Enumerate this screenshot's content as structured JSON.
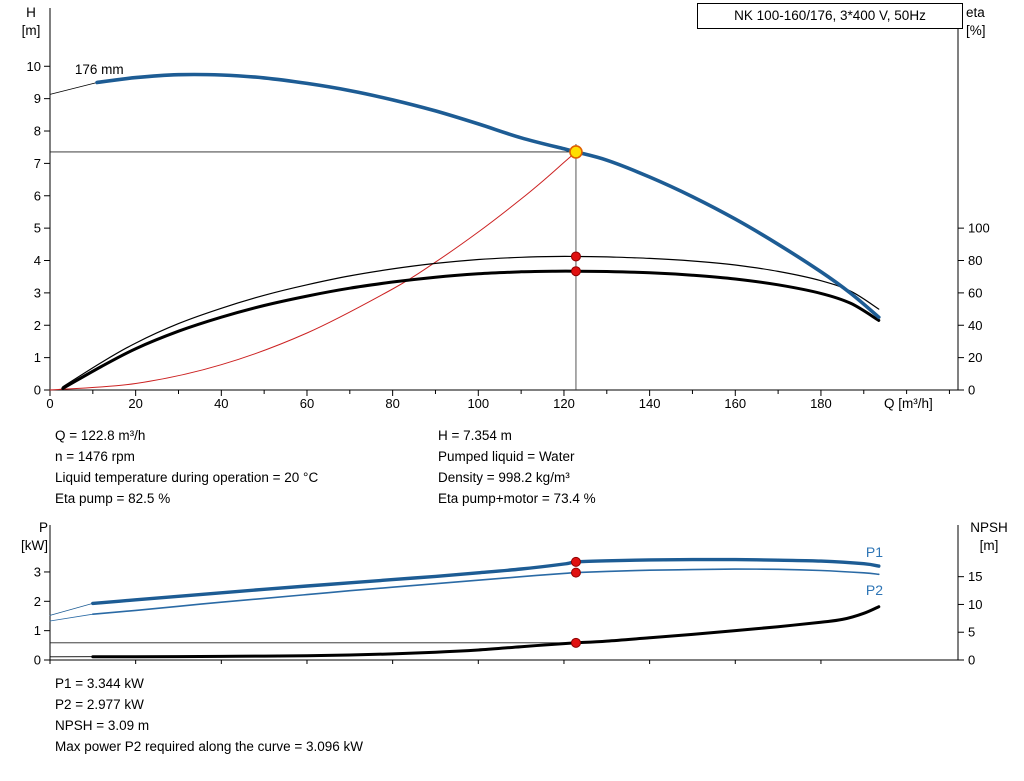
{
  "title_box": "NK 100-160/176, 3*400 V, 50Hz",
  "colors": {
    "curve_blue": "#1d5c94",
    "curve_blue_thin": "#2a6aa5",
    "label_blue": "#2e75b6",
    "system_red": "#cc2222",
    "dot_red": "#e01111",
    "dot_red_stroke": "#8e0000",
    "duty_yellow": "#ffdf00",
    "duty_stroke": "#e06000",
    "axis_black": "#000000"
  },
  "annotations": {
    "left": [
      "Q = 122.8 m³/h",
      "n = 1476 rpm",
      "Liquid temperature during operation = 20 °C",
      "Eta pump = 82.5 %"
    ],
    "right": [
      "H = 7.354 m",
      "Pumped liquid = Water",
      "Density = 998.2 kg/m³",
      "Eta pump+motor = 73.4 %"
    ],
    "bottom": [
      "P1 = 3.344 kW",
      "P2 = 2.977 kW",
      "NPSH = 3.09 m",
      "Max power P2 required along the curve = 3.096 kW"
    ]
  },
  "chart_data": [
    {
      "id": "top",
      "type": "line",
      "title": "NK 100-160/176, 3*400 V, 50Hz",
      "x": {
        "label": "Q [m³/h]",
        "min": 0,
        "max": 212,
        "major_ticks": [
          0,
          20,
          40,
          60,
          80,
          100,
          120,
          140,
          160,
          180
        ],
        "minor_step": 10,
        "show_tick_labels": true
      },
      "y_left": {
        "title_lines": [
          "H",
          "[m]"
        ],
        "min": 0,
        "max": 11.8,
        "ticks": [
          0,
          1,
          2,
          3,
          4,
          5,
          6,
          7,
          8,
          9,
          10
        ]
      },
      "y_right": {
        "title_lines": [
          "eta",
          "[%]"
        ],
        "min": 0,
        "max": 236,
        "ticks": [
          0,
          20,
          40,
          60,
          80,
          100
        ]
      },
      "duty_point": {
        "q": 122.8,
        "h": 7.354,
        "eta_pump": 82.5,
        "eta_pump_motor": 73.4
      },
      "series": [
        {
          "name": "system-curve",
          "axis": "left",
          "color": "#cc2222",
          "width": 1,
          "smooth": true,
          "points": [
            [
              0,
              0
            ],
            [
              20,
              0.2
            ],
            [
              40,
              0.78
            ],
            [
              60,
              1.76
            ],
            [
              80,
              3.12
            ],
            [
              90,
              3.95
            ],
            [
              100,
              4.88
            ],
            [
              110,
              5.9
            ],
            [
              116,
              6.56
            ],
            [
              120,
              7.03
            ],
            [
              122.8,
              7.354
            ]
          ]
        },
        {
          "name": "eta-pump-curve",
          "axis": "right",
          "color": "#000000",
          "width": 1.2,
          "smooth": true,
          "points": [
            [
              3,
              2
            ],
            [
              12,
              17
            ],
            [
              20,
              29
            ],
            [
              30,
              41
            ],
            [
              40,
              50.5
            ],
            [
              50,
              58.5
            ],
            [
              60,
              65
            ],
            [
              70,
              70.5
            ],
            [
              80,
              74.8
            ],
            [
              90,
              78.2
            ],
            [
              100,
              80.6
            ],
            [
              110,
              82
            ],
            [
              118,
              82.5
            ],
            [
              122.8,
              82.5
            ],
            [
              130,
              82.2
            ],
            [
              140,
              81.3
            ],
            [
              150,
              79.7
            ],
            [
              160,
              77.2
            ],
            [
              170,
              73.3
            ],
            [
              180,
              67.5
            ],
            [
              187,
              61
            ],
            [
              193.5,
              50
            ]
          ]
        },
        {
          "name": "eta-pump-motor-curve",
          "axis": "right",
          "color": "#000000",
          "width": 3,
          "smooth": true,
          "points": [
            [
              3,
              1
            ],
            [
              12,
              14.5
            ],
            [
              20,
              25.5
            ],
            [
              30,
              36.3
            ],
            [
              40,
              45
            ],
            [
              50,
              52.2
            ],
            [
              60,
              58
            ],
            [
              70,
              62.9
            ],
            [
              80,
              66.7
            ],
            [
              90,
              69.7
            ],
            [
              100,
              71.8
            ],
            [
              110,
              73
            ],
            [
              118,
              73.4
            ],
            [
              122.8,
              73.4
            ],
            [
              130,
              73.2
            ],
            [
              140,
              72.4
            ],
            [
              150,
              70.9
            ],
            [
              160,
              68.6
            ],
            [
              170,
              65
            ],
            [
              180,
              59.7
            ],
            [
              187,
              53.5
            ],
            [
              193.5,
              43
            ]
          ]
        },
        {
          "name": "pump-curve-leader",
          "axis": "left",
          "color": "#000000",
          "width": 0.8,
          "smooth": false,
          "points": [
            [
              0,
              9.13
            ],
            [
              11,
              9.5
            ]
          ]
        },
        {
          "name": "pump-curve-176mm",
          "axis": "left",
          "color": "#1d5c94",
          "width": 3.6,
          "smooth": true,
          "points": [
            [
              11,
              9.5
            ],
            [
              20,
              9.65
            ],
            [
              30,
              9.74
            ],
            [
              40,
              9.73
            ],
            [
              50,
              9.64
            ],
            [
              60,
              9.47
            ],
            [
              70,
              9.25
            ],
            [
              80,
              8.96
            ],
            [
              90,
              8.62
            ],
            [
              100,
              8.22
            ],
            [
              110,
              7.79
            ],
            [
              120,
              7.45
            ],
            [
              122.8,
              7.354
            ],
            [
              130,
              7.1
            ],
            [
              140,
              6.58
            ],
            [
              150,
              5.97
            ],
            [
              160,
              5.28
            ],
            [
              170,
              4.5
            ],
            [
              180,
              3.65
            ],
            [
              187,
              2.98
            ],
            [
              193.5,
              2.25
            ]
          ]
        }
      ],
      "lines": [
        {
          "name": "duty-horizontal-line",
          "axis": "left",
          "x1": 0,
          "y1": 7.354,
          "x2": 122.8,
          "y2": 7.354,
          "width": 0.9,
          "color": "#222222"
        },
        {
          "name": "duty-vertical-line",
          "axis": "left",
          "x1": 122.8,
          "y1": 0,
          "x2": 122.8,
          "y2": 7.6,
          "width": 0.9,
          "color": "#444444"
        }
      ],
      "markers": [
        {
          "name": "eta-pump-point",
          "axis": "right",
          "x": 122.8,
          "y": 82.5,
          "r": 4.5,
          "fill": "#e01111",
          "stroke": "#8e0000",
          "sw": 1
        },
        {
          "name": "eta-pump-motor-point",
          "axis": "right",
          "x": 122.8,
          "y": 73.4,
          "r": 4.5,
          "fill": "#e01111",
          "stroke": "#8e0000",
          "sw": 1
        },
        {
          "name": "duty-point",
          "axis": "left",
          "x": 122.8,
          "y": 7.354,
          "r": 6,
          "fill": "#ffdf00",
          "stroke": "#e06000",
          "sw": 1.6
        }
      ],
      "labels": [
        {
          "name": "impeller-size-label",
          "text": "176 mm",
          "axis": "left",
          "x": 5.8,
          "y": 9.76,
          "color": "#000000",
          "size": 13.5
        }
      ]
    },
    {
      "id": "bottom",
      "type": "line",
      "x": {
        "label": "",
        "min": 0,
        "max": 212,
        "major_ticks": [
          0,
          20,
          40,
          60,
          80,
          100,
          120,
          140,
          160,
          180
        ],
        "minor_step": 0,
        "show_tick_labels": false
      },
      "y_left": {
        "title_lines": [
          "P",
          "[kW]"
        ],
        "min": 0,
        "max": 4.6,
        "ticks": [
          0,
          1,
          2,
          3
        ]
      },
      "y_right": {
        "title_lines": [
          "NPSH",
          "[m]"
        ],
        "min": 0,
        "max": 24.3,
        "ticks": [
          0,
          5,
          10,
          15
        ]
      },
      "duty_point": {
        "q": 122.8,
        "p1_kw": 3.344,
        "p2_kw": 2.977,
        "npsh_m": 3.09
      },
      "series": [
        {
          "name": "p1-leader",
          "axis": "left",
          "color": "#1d5c94",
          "width": 0.8,
          "smooth": false,
          "points": [
            [
              0,
              1.52
            ],
            [
              10,
              1.93
            ]
          ]
        },
        {
          "name": "p2-leader",
          "axis": "left",
          "color": "#2a6aa5",
          "width": 0.8,
          "smooth": false,
          "points": [
            [
              0,
              1.33
            ],
            [
              10,
              1.56
            ]
          ]
        },
        {
          "name": "npsh-leader",
          "axis": "right",
          "color": "#000000",
          "width": 0.8,
          "smooth": false,
          "points": [
            [
              0,
              0.58
            ],
            [
              10,
              0.6
            ]
          ]
        },
        {
          "name": "p2-curve",
          "axis": "left",
          "color": "#2a6aa5",
          "width": 1.6,
          "smooth": true,
          "points": [
            [
              10,
              1.56
            ],
            [
              20,
              1.69
            ],
            [
              30,
              1.83
            ],
            [
              40,
              1.97
            ],
            [
              50,
              2.1
            ],
            [
              60,
              2.23
            ],
            [
              70,
              2.36
            ],
            [
              80,
              2.48
            ],
            [
              90,
              2.6
            ],
            [
              100,
              2.72
            ],
            [
              110,
              2.84
            ],
            [
              120,
              2.95
            ],
            [
              122.8,
              2.977
            ],
            [
              130,
              3.02
            ],
            [
              140,
              3.06
            ],
            [
              150,
              3.08
            ],
            [
              160,
              3.096
            ],
            [
              170,
              3.09
            ],
            [
              180,
              3.05
            ],
            [
              190,
              2.97
            ],
            [
              193.5,
              2.92
            ]
          ]
        },
        {
          "name": "p1-curve",
          "axis": "left",
          "color": "#1d5c94",
          "width": 3.4,
          "smooth": true,
          "points": [
            [
              10,
              1.93
            ],
            [
              20,
              2.05
            ],
            [
              30,
              2.17
            ],
            [
              40,
              2.29
            ],
            [
              50,
              2.41
            ],
            [
              60,
              2.52
            ],
            [
              70,
              2.63
            ],
            [
              80,
              2.74
            ],
            [
              90,
              2.85
            ],
            [
              100,
              2.97
            ],
            [
              110,
              3.1
            ],
            [
              120,
              3.27
            ],
            [
              122.8,
              3.344
            ],
            [
              130,
              3.38
            ],
            [
              140,
              3.41
            ],
            [
              150,
              3.42
            ],
            [
              160,
              3.42
            ],
            [
              170,
              3.4
            ],
            [
              180,
              3.37
            ],
            [
              190,
              3.28
            ],
            [
              193.5,
              3.2
            ]
          ]
        },
        {
          "name": "npsh-curve",
          "axis": "right",
          "color": "#000000",
          "width": 3,
          "smooth": true,
          "points": [
            [
              10,
              0.6
            ],
            [
              20,
              0.6
            ],
            [
              30,
              0.62
            ],
            [
              40,
              0.65
            ],
            [
              50,
              0.7
            ],
            [
              60,
              0.78
            ],
            [
              70,
              0.9
            ],
            [
              80,
              1.1
            ],
            [
              90,
              1.4
            ],
            [
              100,
              1.8
            ],
            [
              110,
              2.4
            ],
            [
              120,
              2.95
            ],
            [
              122.8,
              3.09
            ],
            [
              130,
              3.4
            ],
            [
              140,
              4.0
            ],
            [
              150,
              4.6
            ],
            [
              160,
              5.3
            ],
            [
              170,
              6.0
            ],
            [
              180,
              6.8
            ],
            [
              185,
              7.3
            ],
            [
              190,
              8.4
            ],
            [
              193.5,
              9.6
            ]
          ]
        }
      ],
      "lines": [
        {
          "name": "npsh-horizontal-line",
          "axis": "right",
          "x1": 0,
          "y1": 3.09,
          "x2": 122.8,
          "y2": 3.09,
          "width": 0.9,
          "color": "#222222"
        }
      ],
      "markers": [
        {
          "name": "p1-point",
          "axis": "left",
          "x": 122.8,
          "y": 3.344,
          "r": 4.5,
          "fill": "#e01111",
          "stroke": "#8e0000",
          "sw": 1
        },
        {
          "name": "p2-point",
          "axis": "left",
          "x": 122.8,
          "y": 2.977,
          "r": 4.5,
          "fill": "#e01111",
          "stroke": "#8e0000",
          "sw": 1
        },
        {
          "name": "npsh-point",
          "axis": "right",
          "x": 122.8,
          "y": 3.09,
          "r": 4.5,
          "fill": "#e01111",
          "stroke": "#8e0000",
          "sw": 1
        }
      ],
      "labels": [
        {
          "name": "p1-label",
          "text": "P1",
          "axis": "left",
          "x": 190.5,
          "y": 3.51,
          "color": "#2e75b6",
          "size": 14
        },
        {
          "name": "p2-label",
          "text": "P2",
          "axis": "left",
          "x": 190.5,
          "y": 2.21,
          "color": "#2e75b6",
          "size": 14
        }
      ]
    }
  ]
}
